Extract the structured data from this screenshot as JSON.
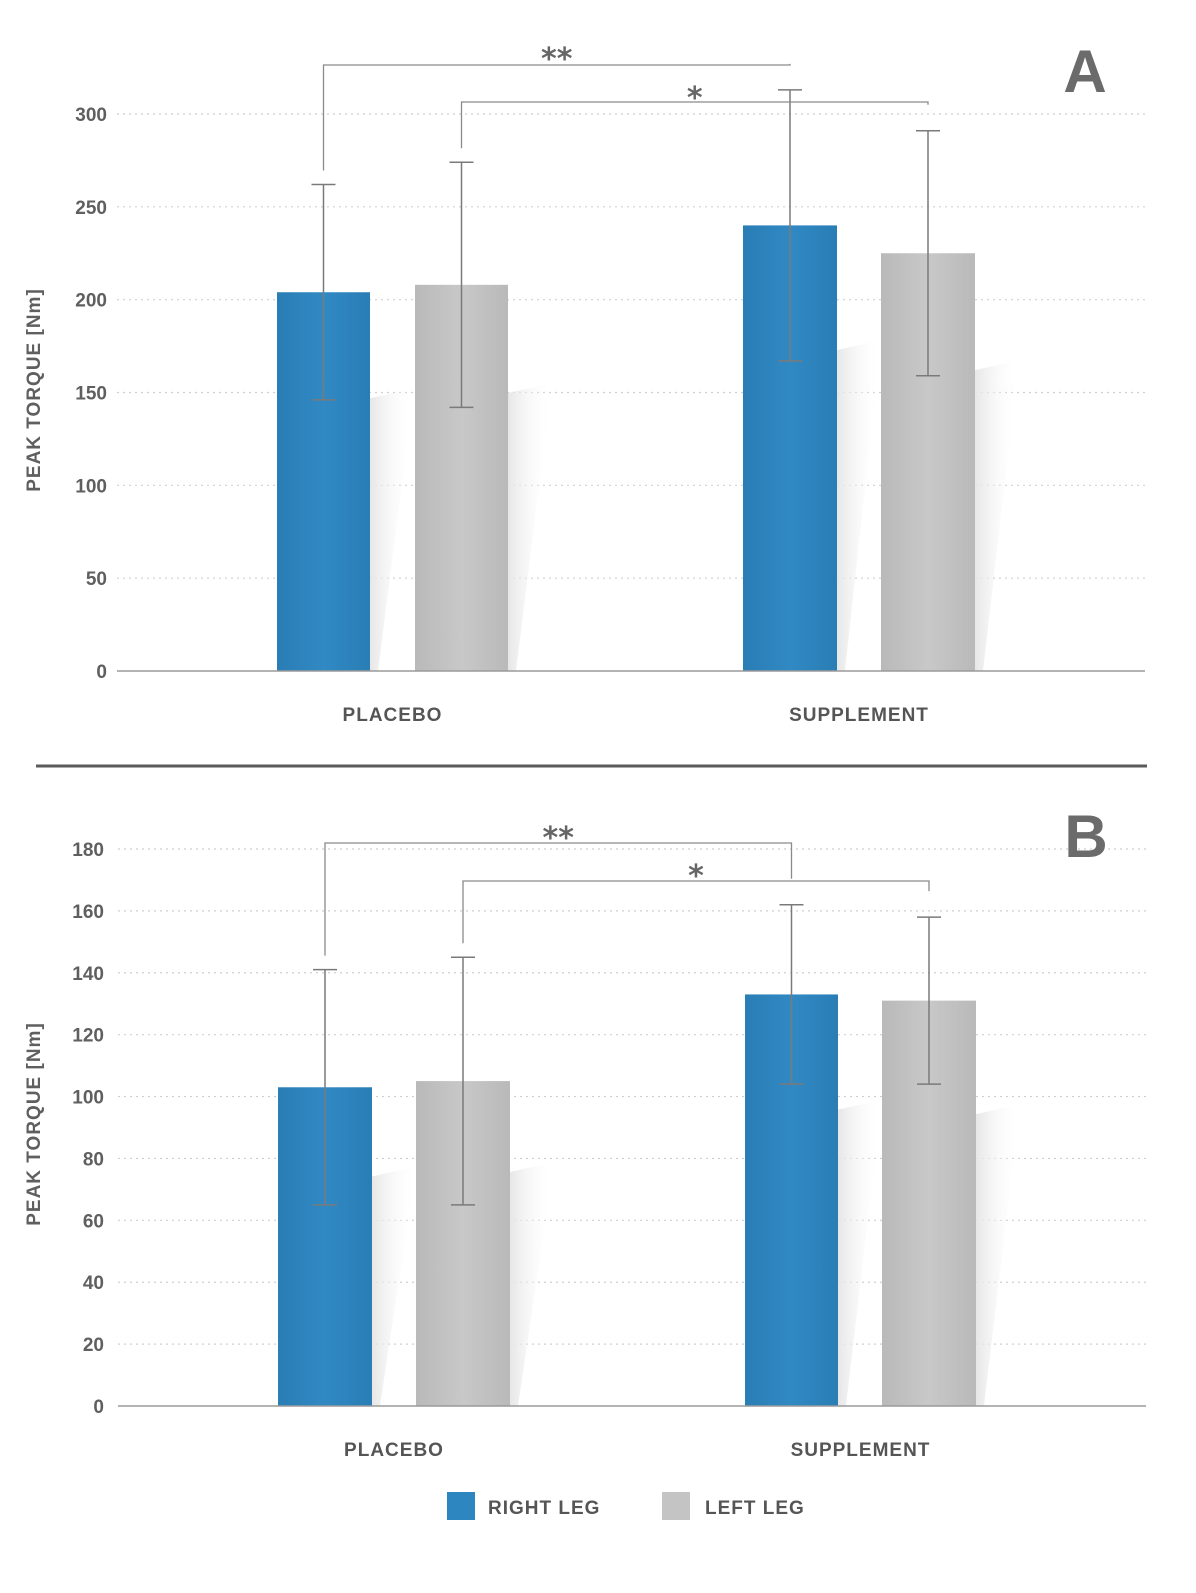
{
  "colors": {
    "right": "#2e86c1",
    "left": "#c4c4c4",
    "axis": "#9a9a9a",
    "grid": "#cfcfcf",
    "whisker": "#7a7a7a",
    "divider": "#5a5a5a"
  },
  "legend": [
    {
      "label": "RIGHT LEG",
      "color": "#2e86c1"
    },
    {
      "label": "LEFT LEG",
      "color": "#c4c4c4"
    }
  ],
  "chart_data": [
    {
      "type": "bar",
      "panel": "A",
      "categories": [
        "PLACEBO",
        "SUPPLEMENT"
      ],
      "ylabel": "PEAK TORQUE [Nm]",
      "ylim": [
        0,
        300
      ],
      "yticks": [
        0,
        50,
        100,
        150,
        200,
        250,
        300
      ],
      "series": [
        {
          "name": "RIGHT LEG",
          "values": [
            204,
            240
          ],
          "error": [
            58,
            73
          ]
        },
        {
          "name": "LEFT LEG",
          "values": [
            208,
            225
          ],
          "error": [
            66,
            66
          ]
        }
      ],
      "annotations": [
        {
          "label": "**",
          "from": "PLACEBO · RIGHT LEG",
          "to": "SUPPLEMENT · RIGHT LEG"
        },
        {
          "label": "*",
          "from": "PLACEBO · LEFT LEG",
          "to": "SUPPLEMENT · LEFT LEG"
        }
      ]
    },
    {
      "type": "bar",
      "panel": "B",
      "categories": [
        "PLACEBO",
        "SUPPLEMENT"
      ],
      "ylabel": "PEAK TORQUE [Nm]",
      "ylim": [
        0,
        180
      ],
      "yticks": [
        0,
        20,
        40,
        60,
        80,
        100,
        120,
        140,
        160,
        180
      ],
      "series": [
        {
          "name": "RIGHT LEG",
          "values": [
            103,
            133
          ],
          "error": [
            38,
            29
          ]
        },
        {
          "name": "LEFT LEG",
          "values": [
            105,
            131
          ],
          "error": [
            40,
            27
          ]
        }
      ],
      "annotations": [
        {
          "label": "**",
          "from": "PLACEBO · RIGHT LEG",
          "to": "SUPPLEMENT · RIGHT LEG"
        },
        {
          "label": "*",
          "from": "PLACEBO · LEFT LEG",
          "to": "SUPPLEMENT · LEFT LEG"
        }
      ]
    }
  ]
}
